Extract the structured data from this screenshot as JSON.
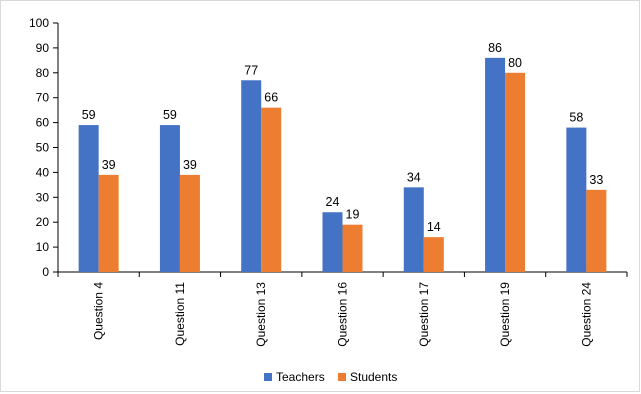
{
  "chart_data": {
    "type": "bar",
    "categories": [
      "Question 4",
      "Question 11",
      "Question 13",
      "Question 16",
      "Question 17",
      "Question 19",
      "Question 24"
    ],
    "series": [
      {
        "name": "Teachers",
        "values": [
          59,
          59,
          77,
          24,
          34,
          86,
          58
        ],
        "color": "#4472C4"
      },
      {
        "name": "Students",
        "values": [
          39,
          39,
          66,
          19,
          14,
          80,
          33
        ],
        "color": "#ED7D31"
      }
    ],
    "title": "",
    "xlabel": "",
    "ylabel": "",
    "ylim": [
      0,
      100
    ],
    "yticks": [
      0,
      10,
      20,
      30,
      40,
      50,
      60,
      70,
      80,
      90,
      100
    ],
    "grid": false,
    "legend": "bottom"
  }
}
